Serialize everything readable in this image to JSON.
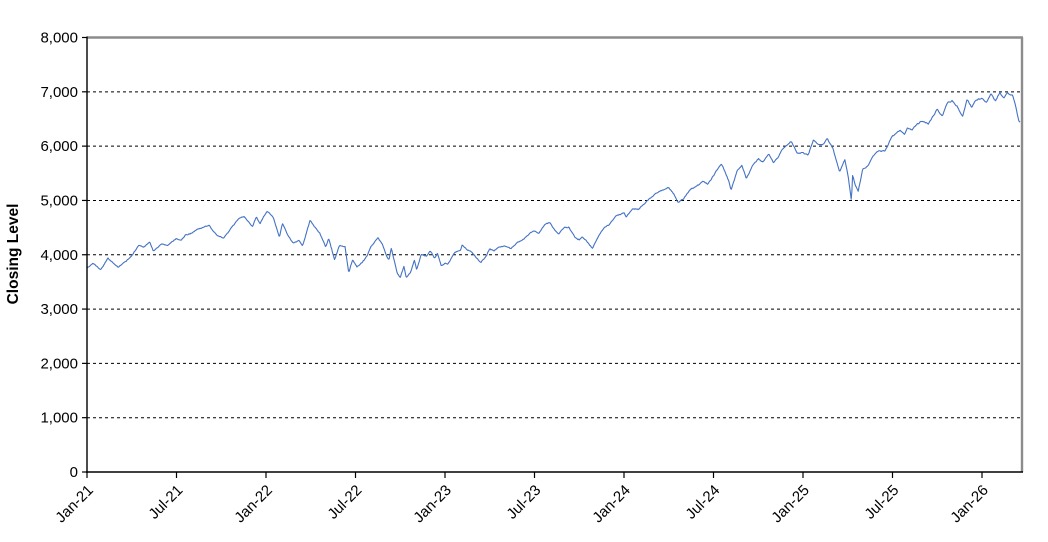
{
  "chart_data": {
    "type": "line",
    "title": "",
    "xlabel": "",
    "ylabel": "Closing Level",
    "ylim": [
      0,
      8000
    ],
    "y_tick_step": 1000,
    "y_tick_labels": [
      "0",
      "1,000",
      "2,000",
      "3,000",
      "4,000",
      "5,000",
      "6,000",
      "7,000",
      "8,000"
    ],
    "x_tick_labels": [
      "Jan-21",
      "Jul-21",
      "Jan-22",
      "Jul-22",
      "Jan-23",
      "Jul-23",
      "Jan-24",
      "Jul-24",
      "Jan-25",
      "Jul-25",
      "Jan-26"
    ],
    "x_tick_interval_months": 6,
    "x_span_months": 62.6,
    "grid": "horizontal-dashed",
    "legend": "none",
    "colors": {
      "line": "#4472C4",
      "gridline": "#000000",
      "plot_border": "#8C8C8C",
      "axis": "#000000",
      "background": "#FFFFFF"
    },
    "series": [
      {
        "name": "Closing Level",
        "x_unit": "months-since-Jan-2021",
        "points": [
          [
            0,
            3756
          ],
          [
            0.4,
            3850
          ],
          [
            0.9,
            3714
          ],
          [
            1.4,
            3935
          ],
          [
            2.1,
            3768
          ],
          [
            2.6,
            3890
          ],
          [
            2.95,
            3973
          ],
          [
            3.5,
            4185
          ],
          [
            3.8,
            4135
          ],
          [
            4.2,
            4233
          ],
          [
            4.45,
            4063
          ],
          [
            5,
            4204
          ],
          [
            5.4,
            4164
          ],
          [
            6,
            4297
          ],
          [
            6.3,
            4258
          ],
          [
            6.6,
            4360
          ],
          [
            7,
            4395
          ],
          [
            7.4,
            4480
          ],
          [
            8,
            4523
          ],
          [
            8.2,
            4537
          ],
          [
            8.7,
            4358
          ],
          [
            9.15,
            4300
          ],
          [
            9.6,
            4465
          ],
          [
            10,
            4605
          ],
          [
            10.3,
            4680
          ],
          [
            10.55,
            4705
          ],
          [
            11.1,
            4513
          ],
          [
            11.35,
            4701
          ],
          [
            11.6,
            4568
          ],
          [
            12,
            4766
          ],
          [
            12.1,
            4797
          ],
          [
            12.5,
            4670
          ],
          [
            12.9,
            4326
          ],
          [
            13.1,
            4589
          ],
          [
            13.45,
            4380
          ],
          [
            13.8,
            4226
          ],
          [
            14.2,
            4260
          ],
          [
            14.45,
            4173
          ],
          [
            14.95,
            4631
          ],
          [
            15.3,
            4500
          ],
          [
            15.6,
            4392
          ],
          [
            16,
            4132
          ],
          [
            16.2,
            4300
          ],
          [
            16.6,
            3900
          ],
          [
            16.9,
            4158
          ],
          [
            17.3,
            4160
          ],
          [
            17.55,
            3667
          ],
          [
            17.8,
            3912
          ],
          [
            18.1,
            3785
          ],
          [
            18.45,
            3863
          ],
          [
            18.8,
            3999
          ],
          [
            19,
            4130
          ],
          [
            19.5,
            4305
          ],
          [
            19.8,
            4199
          ],
          [
            20.1,
            3955
          ],
          [
            20.25,
            3908
          ],
          [
            20.4,
            4110
          ],
          [
            20.8,
            3655
          ],
          [
            21,
            3586
          ],
          [
            21.25,
            3790
          ],
          [
            21.4,
            3577
          ],
          [
            21.7,
            3678
          ],
          [
            21.95,
            3901
          ],
          [
            22.1,
            3720
          ],
          [
            22.4,
            3993
          ],
          [
            22.75,
            3965
          ],
          [
            23,
            4080
          ],
          [
            23.3,
            3934
          ],
          [
            23.5,
            4020
          ],
          [
            23.75,
            3783
          ],
          [
            24,
            3840
          ],
          [
            24.2,
            3825
          ],
          [
            24.6,
            4016
          ],
          [
            25.05,
            4077
          ],
          [
            25.15,
            4180
          ],
          [
            25.5,
            4090
          ],
          [
            25.8,
            4045
          ],
          [
            26.1,
            3943
          ],
          [
            26.4,
            3856
          ],
          [
            26.75,
            3971
          ],
          [
            27,
            4109
          ],
          [
            27.25,
            4060
          ],
          [
            27.6,
            4138
          ],
          [
            28,
            4169
          ],
          [
            28.4,
            4115
          ],
          [
            28.8,
            4205
          ],
          [
            29.3,
            4282
          ],
          [
            29.7,
            4410
          ],
          [
            30,
            4450
          ],
          [
            30.3,
            4399
          ],
          [
            30.7,
            4555
          ],
          [
            31,
            4589
          ],
          [
            31.3,
            4480
          ],
          [
            31.6,
            4370
          ],
          [
            32,
            4508
          ],
          [
            32.3,
            4515
          ],
          [
            32.7,
            4330
          ],
          [
            33,
            4288
          ],
          [
            33.2,
            4330
          ],
          [
            33.55,
            4224
          ],
          [
            33.9,
            4117
          ],
          [
            34.3,
            4358
          ],
          [
            34.7,
            4514
          ],
          [
            35,
            4568
          ],
          [
            35.5,
            4719
          ],
          [
            36,
            4770
          ],
          [
            36.15,
            4688
          ],
          [
            36.6,
            4850
          ],
          [
            37,
            4846
          ],
          [
            37.5,
            4975
          ],
          [
            38,
            5096
          ],
          [
            38.4,
            5175
          ],
          [
            39,
            5254
          ],
          [
            39.35,
            5123
          ],
          [
            39.65,
            4967
          ],
          [
            40,
            5036
          ],
          [
            40.5,
            5222
          ],
          [
            41,
            5278
          ],
          [
            41.3,
            5354
          ],
          [
            41.6,
            5297
          ],
          [
            42,
            5460
          ],
          [
            42.55,
            5667
          ],
          [
            43.05,
            5346
          ],
          [
            43.18,
            5186
          ],
          [
            43.6,
            5554
          ],
          [
            43.9,
            5648
          ],
          [
            44.2,
            5408
          ],
          [
            44.6,
            5626
          ],
          [
            45,
            5762
          ],
          [
            45.3,
            5695
          ],
          [
            45.7,
            5864
          ],
          [
            46,
            5705
          ],
          [
            46.3,
            5782
          ],
          [
            46.6,
            5950
          ],
          [
            47,
            6032
          ],
          [
            47.2,
            6090
          ],
          [
            47.6,
            5867
          ],
          [
            48,
            5882
          ],
          [
            48.35,
            5827
          ],
          [
            48.7,
            6118
          ],
          [
            49,
            6041
          ],
          [
            49.35,
            6025
          ],
          [
            49.62,
            6144
          ],
          [
            50,
            5955
          ],
          [
            50.45,
            5521
          ],
          [
            50.8,
            5767
          ],
          [
            51.05,
            5396
          ],
          [
            51.25,
            4983
          ],
          [
            51.32,
            5456
          ],
          [
            51.5,
            5283
          ],
          [
            51.7,
            5158
          ],
          [
            52,
            5569
          ],
          [
            52.4,
            5650
          ],
          [
            52.7,
            5845
          ],
          [
            53,
            5912
          ],
          [
            53.5,
            5940
          ],
          [
            54,
            6205
          ],
          [
            54.5,
            6280
          ],
          [
            54.8,
            6230
          ],
          [
            55,
            6339
          ],
          [
            55.3,
            6305
          ],
          [
            55.6,
            6389
          ],
          [
            56,
            6460
          ],
          [
            56.4,
            6415
          ],
          [
            56.8,
            6585
          ],
          [
            57,
            6688
          ],
          [
            57.35,
            6553
          ],
          [
            57.7,
            6800
          ],
          [
            58,
            6840
          ],
          [
            58.35,
            6720
          ],
          [
            58.7,
            6538
          ],
          [
            59,
            6849
          ],
          [
            59.3,
            6721
          ],
          [
            59.6,
            6850
          ],
          [
            60,
            6888
          ],
          [
            60.3,
            6815
          ],
          [
            60.6,
            6962
          ],
          [
            60.9,
            6820
          ],
          [
            61.2,
            6990
          ],
          [
            61.45,
            6875
          ],
          [
            61.7,
            6995
          ],
          [
            61.9,
            6940
          ],
          [
            62.05,
            6965
          ],
          [
            62.25,
            6770
          ],
          [
            62.45,
            6480
          ],
          [
            62.55,
            6440
          ],
          [
            62.6,
            6520
          ]
        ]
      }
    ]
  }
}
